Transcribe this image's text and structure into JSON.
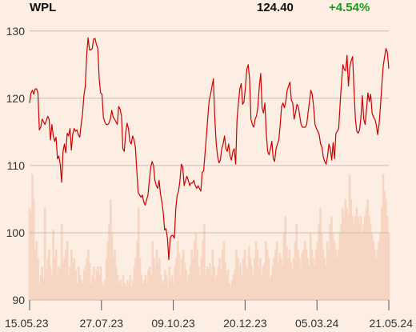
{
  "header": {
    "ticker": "WPL",
    "price": "124.40",
    "change": "+4.54%"
  },
  "colors": {
    "background": "#fdeee3",
    "line": "#cc0000",
    "volume": "#f6d6c2",
    "grid": "#c9bcb3",
    "change_positive": "#1a9a1a"
  },
  "chart_data": {
    "type": "line",
    "title": "",
    "xlabel": "",
    "ylabel": "",
    "ylim": [
      90,
      132
    ],
    "grid": "horizontal",
    "yticks": [
      90,
      100,
      110,
      120,
      130
    ],
    "xticks": [
      "15.05.23",
      "27.07.23",
      "09.10.23",
      "20.12.23",
      "05.03.24",
      "21.05.24"
    ],
    "series": [
      {
        "name": "",
        "values": [
          119.3,
          120.8,
          121.2,
          120.6,
          121.4,
          121.4,
          120.8,
          115.3,
          115.7,
          116.9,
          116.5,
          116.1,
          116.7,
          117.3,
          116.9,
          113.8,
          116.1,
          114.4,
          113.6,
          114.2,
          111.0,
          111.4,
          110.2,
          107.5,
          112.1,
          113.2,
          111.9,
          114.8,
          114.4,
          115.5,
          112.3,
          114.6,
          115.5,
          115.1,
          115.3,
          114.6,
          114.2,
          116.1,
          117.6,
          120.4,
          121.8,
          126.4,
          129.0,
          127.2,
          127.2,
          127.4,
          128.8,
          128.9,
          128.0,
          127.4,
          122.9,
          120.8,
          120.6,
          117.2,
          116.5,
          116.1,
          116.1,
          116.3,
          116.9,
          118.2,
          117.2,
          116.9,
          116.5,
          116.1,
          118.8,
          118.4,
          117.4,
          112.5,
          112.1,
          114.8,
          116.3,
          115.5,
          113.6,
          113.2,
          114.4,
          113.8,
          112.7,
          109.2,
          106.0,
          105.6,
          105.3,
          105.6,
          104.6,
          104.1,
          104.9,
          105.6,
          107.8,
          109.7,
          110.6,
          110.0,
          107.8,
          107.0,
          106.6,
          107.8,
          105.8,
          104.6,
          103.0,
          100.4,
          100.6,
          99.2,
          96.0,
          99.2,
          99.6,
          99.6,
          99.2,
          103.6,
          105.6,
          106.2,
          107.8,
          110.2,
          109.8,
          107.0,
          107.8,
          108.4,
          107.8,
          107.0,
          107.4,
          107.4,
          107.8,
          107.0,
          106.6,
          107.0,
          106.6,
          106.2,
          109.0,
          109.2,
          111.8,
          114.4,
          117.2,
          119.7,
          120.6,
          121.8,
          122.9,
          117.2,
          113.4,
          111.4,
          110.4,
          110.8,
          112.5,
          113.2,
          114.4,
          112.5,
          112.1,
          113.2,
          111.4,
          110.8,
          112.1,
          112.5,
          110.2,
          116.9,
          119.3,
          121.4,
          122.2,
          119.1,
          119.5,
          121.6,
          124.3,
          125.0,
          122.9,
          116.9,
          116.1,
          115.7,
          116.9,
          117.4,
          118.8,
          121.8,
          123.7,
          118.6,
          117.8,
          119.3,
          114.8,
          112.1,
          111.6,
          112.5,
          113.6,
          111.0,
          110.6,
          112.5,
          113.2,
          113.8,
          116.1,
          118.8,
          119.3,
          118.6,
          119.5,
          121.2,
          121.8,
          122.4,
          119.7,
          119.3,
          116.9,
          117.8,
          119.1,
          118.8,
          117.4,
          116.1,
          115.7,
          115.7,
          115.7,
          116.1,
          117.8,
          119.5,
          121.2,
          120.6,
          118.8,
          116.1,
          115.5,
          115.1,
          114.6,
          113.2,
          112.7,
          111.2,
          110.6,
          110.2,
          111.4,
          113.2,
          112.5,
          110.8,
          113.4,
          111.0,
          114.8,
          115.1,
          115.5,
          119.1,
          122.2,
          125.0,
          124.3,
          124.1,
          126.4,
          121.8,
          124.6,
          125.6,
          126.2,
          121.4,
          116.9,
          115.1,
          114.8,
          115.3,
          117.2,
          120.4,
          116.9,
          116.1,
          118.4,
          120.8,
          119.5,
          120.6,
          117.8,
          117.2,
          116.9,
          116.1,
          114.6,
          116.1,
          118.8,
          122.0,
          124.8,
          126.2,
          127.4,
          126.8,
          124.4
        ]
      }
    ],
    "volume": [
      0.55,
      0.52,
      0.75,
      0.6,
      0.3,
      0.35,
      0.25,
      0.1,
      0.15,
      0.2,
      0.12,
      0.55,
      0.18,
      0.25,
      0.3,
      0.2,
      0.15,
      0.42,
      0.25,
      0.3,
      0.15,
      0.2,
      0.18,
      0.45,
      0.22,
      0.25,
      0.3,
      0.35,
      0.15,
      0.2,
      0.3,
      0.22,
      0.25,
      0.18,
      0.1,
      0.2,
      0.15,
      0.12,
      0.1,
      0.18,
      0.2,
      0.25,
      0.3,
      0.22,
      0.1,
      0.15,
      0.2,
      0.12,
      0.18,
      0.2,
      0.15,
      0.2,
      0.1,
      0.08,
      0.12,
      0.25,
      0.35,
      0.45,
      0.6,
      0.4,
      0.25,
      0.3,
      0.2,
      0.15,
      0.1,
      0.12,
      0.08,
      0.15,
      0.1,
      0.08,
      0.12,
      0.1,
      0.15,
      0.08,
      0.12,
      0.2,
      0.25,
      0.35,
      0.55,
      0.25,
      0.15,
      0.1,
      0.12,
      0.15,
      0.1,
      0.18,
      0.2,
      0.15,
      0.35,
      0.25,
      0.2,
      0.3,
      0.22,
      0.25,
      0.15,
      0.1,
      0.12,
      0.18,
      0.15,
      0.08,
      0.2,
      0.12,
      0.15,
      0.1,
      0.2,
      0.25,
      0.35,
      0.28,
      0.15,
      0.25,
      0.3,
      0.22,
      0.18,
      0.12,
      0.15,
      0.2,
      0.3,
      0.25,
      0.35,
      0.4,
      0.3,
      0.2,
      0.15,
      0.25,
      0.35,
      0.45,
      0.15,
      0.2,
      0.18,
      0.22,
      0.15,
      0.3,
      0.2,
      0.12,
      0.15,
      0.2,
      0.25,
      0.18,
      0.3,
      0.35,
      0.22,
      0.15,
      0.18,
      0.1,
      0.08,
      0.12,
      0.15,
      0.18,
      0.3,
      0.25,
      0.2,
      0.22,
      0.15,
      0.25,
      0.3,
      0.2,
      0.18,
      0.32,
      0.25,
      0.2,
      0.15,
      0.25,
      0.35,
      0.3,
      0.2,
      0.25,
      0.15,
      0.2,
      0.22,
      0.35,
      0.3,
      0.25,
      0.12,
      0.15,
      0.2,
      0.25,
      0.3,
      0.35,
      0.22,
      0.28,
      0.25,
      0.2,
      0.4,
      0.5,
      0.32,
      0.25,
      0.3,
      0.22,
      0.18,
      0.25,
      0.35,
      0.45,
      0.3,
      0.25,
      0.2,
      0.28,
      0.3,
      0.35,
      0.3,
      0.25,
      0.2,
      0.4,
      0.3,
      0.25,
      0.2,
      0.3,
      0.35,
      0.45,
      0.55,
      0.4,
      0.3,
      0.25,
      0.2,
      0.35,
      0.3,
      0.45,
      0.5,
      0.4,
      0.35,
      0.3,
      0.25,
      0.3,
      0.4,
      0.45,
      0.55,
      0.5,
      0.6,
      0.55,
      0.5,
      0.75,
      0.6,
      0.5,
      0.45,
      0.5,
      0.55,
      0.5,
      0.45,
      0.5,
      0.4,
      0.45,
      0.5,
      0.55,
      0.6,
      0.5,
      0.45,
      0.4,
      0.35,
      0.3,
      0.25,
      0.3,
      0.35,
      0.4,
      0.55,
      0.75,
      0.65,
      0.6,
      0.5,
      0.4
    ]
  }
}
